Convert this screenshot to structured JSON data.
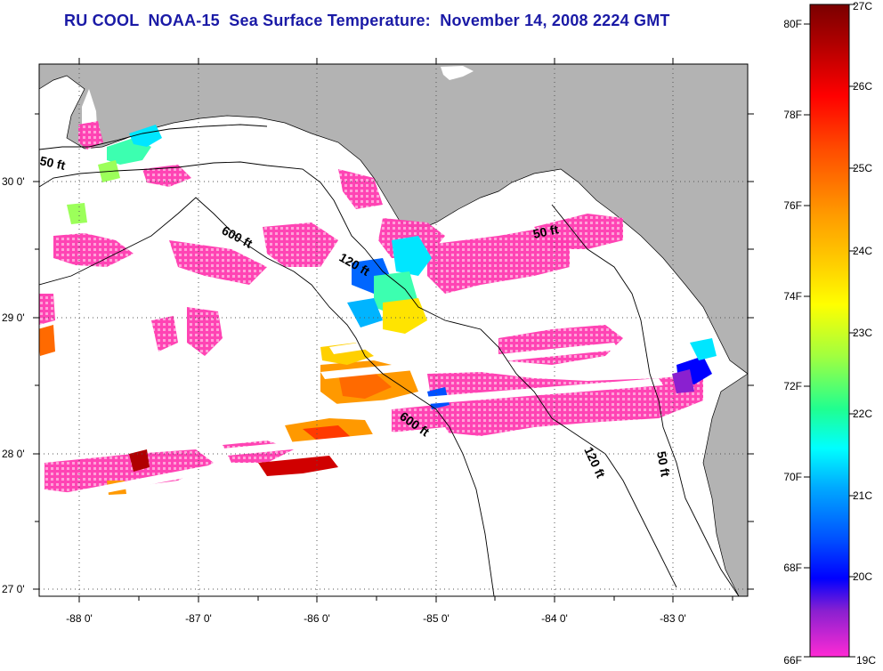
{
  "title": "RU COOL  NOAA-15  Sea Surface Temperature:  November 14, 2008 2224 GMT",
  "map": {
    "lon_labels": [
      "-88 0'",
      "-87 0'",
      "-86 0'",
      "-85 0'",
      "-84 0'",
      "-83 0'"
    ],
    "lat_labels": [
      "30 0'",
      "29 0'",
      "28 0'",
      "27 0'"
    ],
    "contour_labels": [
      "50 ft",
      "600 ft",
      "120 ft",
      "50 ft",
      "600 ft",
      "120 ft",
      "50 ft"
    ],
    "colors": {
      "land": "#b3b3b3",
      "ocean": "#ffffff",
      "grid": "#555555"
    }
  },
  "colorbar": {
    "fahrenheit_labels": [
      "80F",
      "78F",
      "76F",
      "74F",
      "72F",
      "70F",
      "68F",
      "66F"
    ],
    "celsius_labels": [
      "27C",
      "26C",
      "25C",
      "24C",
      "23C",
      "22C",
      "21C",
      "20C",
      "19C"
    ],
    "range_c": [
      19,
      27
    ]
  }
}
